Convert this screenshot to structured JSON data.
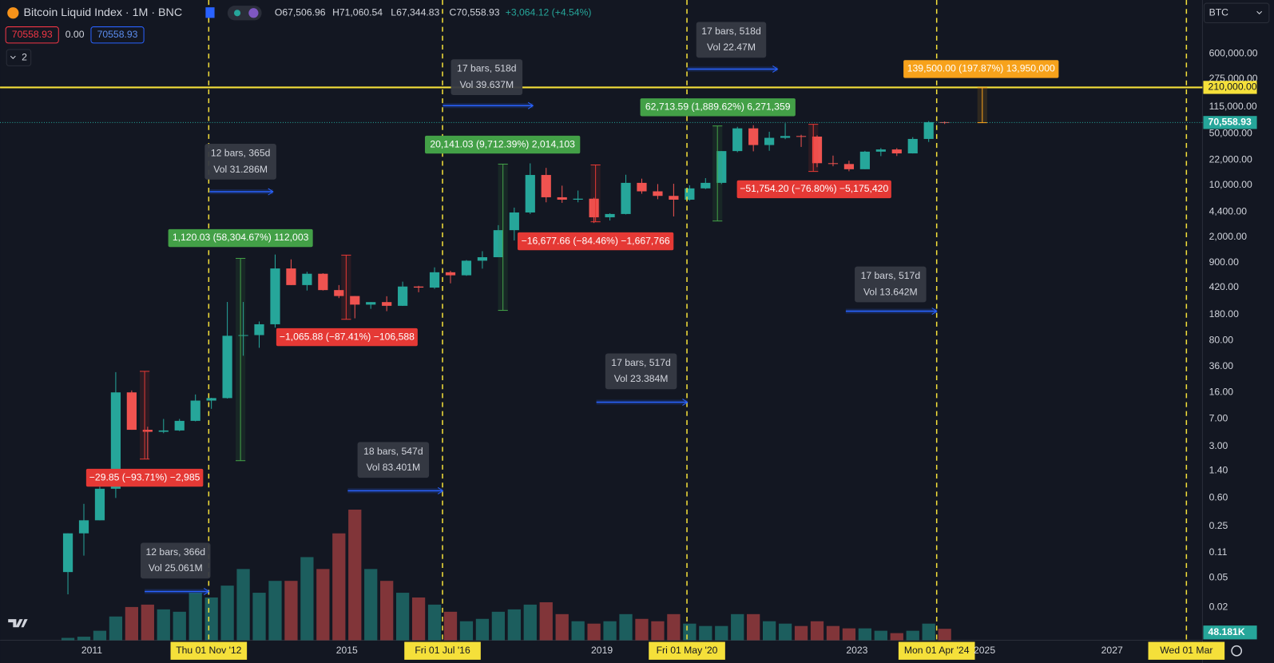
{
  "header": {
    "symbol": "Bitcoin Liquid Index · 1M · BNC",
    "open": "O67,506.96",
    "high": "H71,060.54",
    "low": "L67,344.83",
    "close": "C70,558.93",
    "change": "+3,064.12 (+4.54%)",
    "sell_price": "70558.93",
    "spread": "0.00",
    "buy_price": "70558.93",
    "indicators_count": "2",
    "currency": "BTC"
  },
  "chart_data": {
    "type": "candlestick",
    "log_scale": true,
    "up_color": "#26a69a",
    "down_color": "#ef5350",
    "ylim": [
      0.0072,
      3180000
    ],
    "yticks": [
      {
        "value": 600000,
        "label": "600,000.00"
      },
      {
        "value": 275000,
        "label": "275,000.00"
      },
      {
        "value": 115000,
        "label": "115,000.00"
      },
      {
        "value": 50000,
        "label": "50,000.00"
      },
      {
        "value": 22000,
        "label": "22,000.00"
      },
      {
        "value": 10000,
        "label": "10,000.00"
      },
      {
        "value": 4400,
        "label": "4,400.00"
      },
      {
        "value": 2000,
        "label": "2,000.00"
      },
      {
        "value": 900,
        "label": "900.00"
      },
      {
        "value": 420,
        "label": "420.00"
      },
      {
        "value": 180,
        "label": "180.00"
      },
      {
        "value": 80,
        "label": "80.00"
      },
      {
        "value": 36,
        "label": "36.00"
      },
      {
        "value": 16,
        "label": "16.00"
      },
      {
        "value": 7,
        "label": "7.00"
      },
      {
        "value": 3,
        "label": "3.00"
      },
      {
        "value": 1.4,
        "label": "1.40"
      },
      {
        "value": 0.6,
        "label": "0.60"
      },
      {
        "value": 0.25,
        "label": "0.25"
      },
      {
        "value": 0.11,
        "label": "0.11"
      },
      {
        "value": 0.05,
        "label": "0.05"
      },
      {
        "value": 0.02,
        "label": "0.02"
      }
    ],
    "hline": {
      "value": 210000,
      "label": "210,000.00",
      "color": "#f5e03a"
    },
    "last_price": {
      "value": 70558.93,
      "label": "70,558.93"
    },
    "xticks": [
      {
        "value": "2011-01",
        "label": "2011"
      },
      {
        "value": "2012-11",
        "label": "Thu 01 Nov '12",
        "highlight": true
      },
      {
        "value": "2015-01",
        "label": "2015"
      },
      {
        "value": "2016-07",
        "label": "Fri 01 Jul '16",
        "highlight": true
      },
      {
        "value": "2019-01",
        "label": "2019"
      },
      {
        "value": "2020-05",
        "label": "Fri 01 May '20",
        "highlight": true
      },
      {
        "value": "2023-01",
        "label": "2023"
      },
      {
        "value": "2024-04",
        "label": "Mon 01 Apr '24",
        "highlight": true
      },
      {
        "value": "2025-01",
        "label": "2025"
      },
      {
        "value": "2027-01",
        "label": "2027"
      },
      {
        "value": "2028-03",
        "label": "Wed 01 Mar",
        "highlight": true
      }
    ],
    "candles": [
      {
        "date": "2010-07",
        "open": 0.06,
        "high": 0.2,
        "low": 0.03,
        "close": 0.2,
        "volume": 10000
      },
      {
        "date": "2010-10",
        "open": 0.2,
        "high": 0.5,
        "low": 0.1,
        "close": 0.3,
        "volume": 15000
      },
      {
        "date": "2011-01",
        "open": 0.3,
        "high": 1.1,
        "low": 0.3,
        "close": 0.8,
        "volume": 40000
      },
      {
        "date": "2011-04",
        "open": 0.8,
        "high": 30,
        "low": 0.6,
        "close": 16,
        "volume": 100000
      },
      {
        "date": "2011-07",
        "open": 16,
        "high": 17,
        "low": 5,
        "close": 5,
        "volume": 140000
      },
      {
        "date": "2011-10",
        "open": 5,
        "high": 5.5,
        "low": 2,
        "close": 4.7,
        "volume": 150000
      },
      {
        "date": "2012-01",
        "open": 4.7,
        "high": 7,
        "low": 4.5,
        "close": 4.9,
        "volume": 130000
      },
      {
        "date": "2012-04",
        "open": 4.9,
        "high": 7,
        "low": 4.8,
        "close": 6.6,
        "volume": 120000
      },
      {
        "date": "2012-07",
        "open": 6.6,
        "high": 15,
        "low": 6.5,
        "close": 12.4,
        "volume": 200000
      },
      {
        "date": "2012-10",
        "open": 12.4,
        "high": 13.5,
        "low": 9.6,
        "close": 13.4,
        "volume": 180000
      },
      {
        "date": "2013-01",
        "open": 13.4,
        "high": 266,
        "low": 13.2,
        "close": 93,
        "volume": 230000
      },
      {
        "date": "2013-04",
        "open": 93,
        "high": 266,
        "low": 50,
        "close": 95,
        "volume": 300000
      },
      {
        "date": "2013-07",
        "open": 95,
        "high": 145,
        "low": 64,
        "close": 133,
        "volume": 200000
      },
      {
        "date": "2013-10",
        "open": 133,
        "high": 1163,
        "low": 120,
        "close": 754,
        "volume": 250000
      },
      {
        "date": "2014-01",
        "open": 754,
        "high": 1000,
        "low": 450,
        "close": 450,
        "volume": 250000
      },
      {
        "date": "2014-04",
        "open": 450,
        "high": 680,
        "low": 380,
        "close": 640,
        "volume": 350000
      },
      {
        "date": "2014-07",
        "open": 640,
        "high": 650,
        "low": 380,
        "close": 385,
        "volume": 300000
      },
      {
        "date": "2014-10",
        "open": 385,
        "high": 450,
        "low": 300,
        "close": 320,
        "volume": 450000
      },
      {
        "date": "2015-01",
        "open": 320,
        "high": 320,
        "low": 160,
        "close": 245,
        "volume": 550000
      },
      {
        "date": "2015-04",
        "open": 245,
        "high": 265,
        "low": 215,
        "close": 265,
        "volume": 300000
      },
      {
        "date": "2015-07",
        "open": 265,
        "high": 318,
        "low": 200,
        "close": 236,
        "volume": 250000
      },
      {
        "date": "2015-10",
        "open": 236,
        "high": 500,
        "low": 235,
        "close": 430,
        "volume": 200000
      },
      {
        "date": "2016-01",
        "open": 430,
        "high": 440,
        "low": 360,
        "close": 416,
        "volume": 180000
      },
      {
        "date": "2016-04",
        "open": 416,
        "high": 780,
        "low": 400,
        "close": 670,
        "volume": 150000
      },
      {
        "date": "2016-07",
        "open": 670,
        "high": 700,
        "low": 475,
        "close": 610,
        "volume": 120000
      },
      {
        "date": "2016-10",
        "open": 610,
        "high": 980,
        "low": 600,
        "close": 960,
        "volume": 80000
      },
      {
        "date": "2017-01",
        "open": 960,
        "high": 1290,
        "low": 750,
        "close": 1070,
        "volume": 90000
      },
      {
        "date": "2017-04",
        "open": 1070,
        "high": 2900,
        "low": 1070,
        "close": 2480,
        "volume": 120000
      },
      {
        "date": "2017-07",
        "open": 2480,
        "high": 5000,
        "low": 1800,
        "close": 4300,
        "volume": 130000
      },
      {
        "date": "2017-10",
        "open": 4300,
        "high": 19800,
        "low": 4100,
        "close": 13800,
        "volume": 150000
      },
      {
        "date": "2018-01",
        "open": 13800,
        "high": 17200,
        "low": 5900,
        "close": 6900,
        "volume": 160000
      },
      {
        "date": "2018-04",
        "open": 6900,
        "high": 9900,
        "low": 5800,
        "close": 6400,
        "volume": 110000
      },
      {
        "date": "2018-07",
        "open": 6400,
        "high": 8500,
        "low": 5900,
        "close": 6600,
        "volume": 80000
      },
      {
        "date": "2018-10",
        "open": 6600,
        "high": 6800,
        "low": 3100,
        "close": 3700,
        "volume": 70000
      },
      {
        "date": "2019-01",
        "open": 3700,
        "high": 4200,
        "low": 3350,
        "close": 4100,
        "volume": 80000
      },
      {
        "date": "2019-04",
        "open": 4100,
        "high": 13900,
        "low": 4050,
        "close": 10800,
        "volume": 110000
      },
      {
        "date": "2019-07",
        "open": 10800,
        "high": 12300,
        "low": 7700,
        "close": 8300,
        "volume": 90000
      },
      {
        "date": "2019-10",
        "open": 8300,
        "high": 10400,
        "low": 6500,
        "close": 7200,
        "volume": 80000
      },
      {
        "date": "2020-01",
        "open": 7200,
        "high": 10500,
        "low": 3800,
        "close": 6400,
        "volume": 110000
      },
      {
        "date": "2020-04",
        "open": 6400,
        "high": 10000,
        "low": 6200,
        "close": 9100,
        "volume": 70000
      },
      {
        "date": "2020-07",
        "open": 9100,
        "high": 12500,
        "low": 8900,
        "close": 10800,
        "volume": 60000
      },
      {
        "date": "2020-10",
        "open": 10800,
        "high": 29000,
        "low": 10400,
        "close": 29000,
        "volume": 60000
      },
      {
        "date": "2021-01",
        "open": 29000,
        "high": 61700,
        "low": 28000,
        "close": 58800,
        "volume": 110000
      },
      {
        "date": "2021-04",
        "open": 58800,
        "high": 64900,
        "low": 28800,
        "close": 35000,
        "volume": 110000
      },
      {
        "date": "2021-07",
        "open": 35000,
        "high": 52900,
        "low": 29300,
        "close": 43800,
        "volume": 80000
      },
      {
        "date": "2021-10",
        "open": 43800,
        "high": 69000,
        "low": 42000,
        "close": 46300,
        "volume": 70000
      },
      {
        "date": "2022-01",
        "open": 46300,
        "high": 48200,
        "low": 33000,
        "close": 45500,
        "volume": 60000
      },
      {
        "date": "2022-04",
        "open": 45500,
        "high": 47400,
        "low": 17600,
        "close": 19900,
        "volume": 80000
      },
      {
        "date": "2022-07",
        "open": 19900,
        "high": 25200,
        "low": 18100,
        "close": 19400,
        "volume": 60000
      },
      {
        "date": "2022-10",
        "open": 19400,
        "high": 21500,
        "low": 15500,
        "close": 16500,
        "volume": 50000
      },
      {
        "date": "2023-01",
        "open": 16500,
        "high": 29200,
        "low": 16500,
        "close": 28500,
        "volume": 50000
      },
      {
        "date": "2023-04",
        "open": 28500,
        "high": 31800,
        "low": 24800,
        "close": 30500,
        "volume": 40000
      },
      {
        "date": "2023-07",
        "open": 30500,
        "high": 31800,
        "low": 24900,
        "close": 27000,
        "volume": 30000
      },
      {
        "date": "2023-10",
        "open": 27000,
        "high": 44700,
        "low": 26900,
        "close": 42300,
        "volume": 40000
      },
      {
        "date": "2024-01",
        "open": 42300,
        "high": 73800,
        "low": 38500,
        "close": 71300,
        "volume": 70000
      },
      {
        "date": "2024-04",
        "open": 71300,
        "high": 72800,
        "low": 67300,
        "close": 70558.93,
        "volume": 48181,
        "volume_label": "48.181K"
      }
    ],
    "price_ranges": [
      {
        "label": "1,120.03 (58,304.67%) 112,003",
        "color": "#43a047"
      },
      {
        "label": "−29.85 (−93.71%) −2,985",
        "color": "#e53935"
      },
      {
        "label": "−1,065.88 (−87.41%) −106,588",
        "color": "#e53935"
      },
      {
        "label": "20,141.03 (9,712.39%) 2,014,103",
        "color": "#43a047"
      },
      {
        "label": "−16,677.66 (−84.46%) −1,667,766",
        "color": "#e53935"
      },
      {
        "label": "62,713.59 (1,889.62%) 6,271,359",
        "color": "#43a047"
      },
      {
        "label": "−51,754.20 (−76.80%) −5,175,420",
        "color": "#e53935"
      },
      {
        "label": "139,500.00 (197.87%) 13,950,000",
        "color": "#f7a21b"
      }
    ],
    "date_ranges": [
      {
        "bars": "12 bars, 366d",
        "volume": "Vol 25.061M"
      },
      {
        "bars": "12 bars, 365d",
        "volume": "Vol 31.286M"
      },
      {
        "bars": "18 bars, 547d",
        "volume": "Vol 83.401M"
      },
      {
        "bars": "17 bars, 518d",
        "volume": "Vol 39.637M"
      },
      {
        "bars": "17 bars, 517d",
        "volume": "Vol 23.384M"
      },
      {
        "bars": "17 bars, 518d",
        "volume": "Vol 22.47M"
      },
      {
        "bars": "17 bars, 517d",
        "volume": "Vol 13.642M"
      }
    ]
  }
}
